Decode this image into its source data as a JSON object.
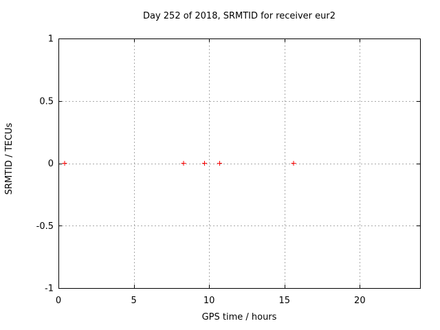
{
  "figure": {
    "background_color": "#ffffff",
    "border_color": "#000000",
    "grid_color": "#a8a8a8",
    "text_color": "#000000"
  },
  "chart_data": {
    "type": "scatter",
    "title": "Day 252 of 2018, SRMTID for receiver eur2",
    "xlabel": "GPS time / hours",
    "ylabel": "SRMTID / TECUs",
    "xlim": [
      0,
      24
    ],
    "ylim": [
      -1,
      1
    ],
    "x_ticks": [
      0,
      5,
      10,
      15,
      20
    ],
    "x_tick_labels": [
      "0",
      "5",
      "10",
      "15",
      "20"
    ],
    "y_ticks": [
      -1,
      -0.5,
      0,
      0.5,
      1
    ],
    "y_tick_labels": [
      "-1",
      "-0.5",
      "0",
      "0.5",
      "1"
    ],
    "grid": true,
    "grid_style": "dotted",
    "legend": null,
    "series": [
      {
        "name": "SRMTID",
        "marker": "plus",
        "color": "#ff0000",
        "x": [
          0.4,
          8.3,
          9.7,
          10.7,
          15.6
        ],
        "y": [
          0,
          0,
          0,
          0,
          0
        ]
      }
    ]
  }
}
